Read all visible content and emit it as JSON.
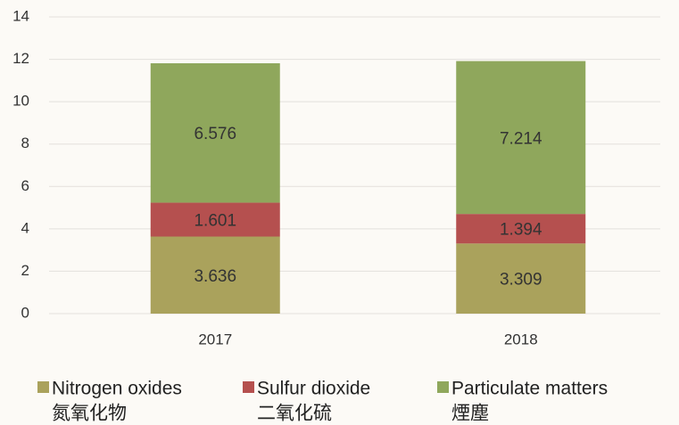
{
  "chart_data": {
    "type": "stacked_bar",
    "categories": [
      "2017",
      "2018"
    ],
    "series": [
      {
        "name": "Nitrogen oxides",
        "name_zh": "氮氧化物",
        "color": "#aaa25c",
        "values": [
          3.636,
          3.309
        ]
      },
      {
        "name": "Sulfur dioxide",
        "name_zh": "二氧化硫",
        "color": "#b5504f",
        "values": [
          1.601,
          1.394
        ]
      },
      {
        "name": "Particulate matters",
        "name_zh": "煙塵",
        "color": "#8fa75c",
        "values": [
          6.576,
          7.214
        ]
      }
    ],
    "ylim": [
      0,
      14
    ],
    "yticks": [
      0,
      2,
      4,
      6,
      8,
      10,
      12,
      14
    ],
    "grid": true,
    "legend": "bottom"
  }
}
